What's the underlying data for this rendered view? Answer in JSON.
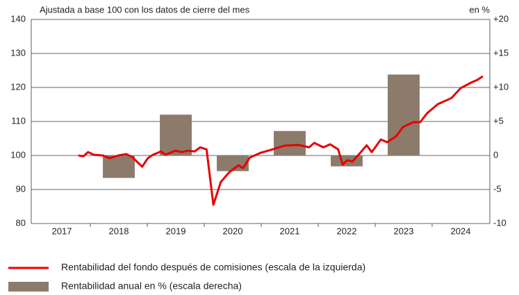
{
  "chart_data": {
    "type": "line-bar",
    "subtitle": "Ajustada a base 100 con los datos de cierre del mes",
    "y2_label": "en %",
    "xlim": [
      2017,
      2025
    ],
    "xticks": [
      {
        "value": 2017.5,
        "label": "2017"
      },
      {
        "value": 2018.5,
        "label": "2018"
      },
      {
        "value": 2019.5,
        "label": "2019"
      },
      {
        "value": 2020.5,
        "label": "2020"
      },
      {
        "value": 2021.5,
        "label": "2021"
      },
      {
        "value": 2022.5,
        "label": "2022"
      },
      {
        "value": 2023.5,
        "label": "2023"
      },
      {
        "value": 2024.5,
        "label": "2024"
      }
    ],
    "ylim": [
      80,
      140
    ],
    "yticks": [
      80,
      90,
      100,
      110,
      120,
      130,
      140
    ],
    "y2lim": [
      -10,
      20
    ],
    "y2ticks": [
      -10,
      -5,
      0,
      {
        "value": 5,
        "label": "+5"
      },
      {
        "value": 10,
        "label": "+10"
      },
      {
        "value": 15,
        "label": "+15"
      },
      {
        "value": 20,
        "label": "+20"
      }
    ],
    "grid": true,
    "series": [
      {
        "name": "Rentabilidad anual en % (escala derecha)",
        "type": "bar",
        "axis": "y2",
        "color": "#8c7b6b",
        "x": [
          2018.5,
          2019.5,
          2020.5,
          2021.5,
          2022.5,
          2023.5
        ],
        "values": [
          -3.3,
          6.0,
          -2.3,
          3.6,
          -1.6,
          11.9
        ]
      },
      {
        "name": "Rentabilidad del fondo después de comisiones (escala de la izquierda)",
        "type": "line",
        "color": "#e60000",
        "x": [
          2017.79,
          2017.88,
          2017.96,
          2018.06,
          2018.22,
          2018.34,
          2018.49,
          2018.63,
          2018.73,
          2018.91,
          2019.01,
          2019.1,
          2019.24,
          2019.32,
          2019.49,
          2019.61,
          2019.71,
          2019.83,
          2019.93,
          2020.04,
          2020.16,
          2020.29,
          2020.44,
          2020.6,
          2020.68,
          2020.8,
          2020.99,
          2021.2,
          2021.41,
          2021.66,
          2021.84,
          2021.93,
          2022.09,
          2022.21,
          2022.35,
          2022.43,
          2022.51,
          2022.6,
          2022.76,
          2022.85,
          2022.94,
          2023.1,
          2023.21,
          2023.37,
          2023.49,
          2023.67,
          2023.79,
          2023.91,
          2024.1,
          2024.34,
          2024.5,
          2024.68,
          2024.79,
          2024.89
        ],
        "values": [
          100,
          99.8,
          101,
          100.2,
          100,
          99.2,
          100,
          100.4,
          99.6,
          96.7,
          99.2,
          100.2,
          101.2,
          100.2,
          101.4,
          101,
          101.4,
          101.2,
          102.4,
          101.8,
          85.5,
          92.2,
          95.1,
          97.1,
          96.3,
          99.4,
          100.8,
          101.8,
          102.9,
          103.1,
          102.4,
          103.7,
          102.4,
          103.3,
          101.8,
          97.3,
          98.6,
          98.2,
          101.2,
          103,
          101,
          104.7,
          103.9,
          105.7,
          108.4,
          109.8,
          109.8,
          112.4,
          115.1,
          116.9,
          119.8,
          121.4,
          122.2,
          123.3
        ]
      }
    ]
  }
}
